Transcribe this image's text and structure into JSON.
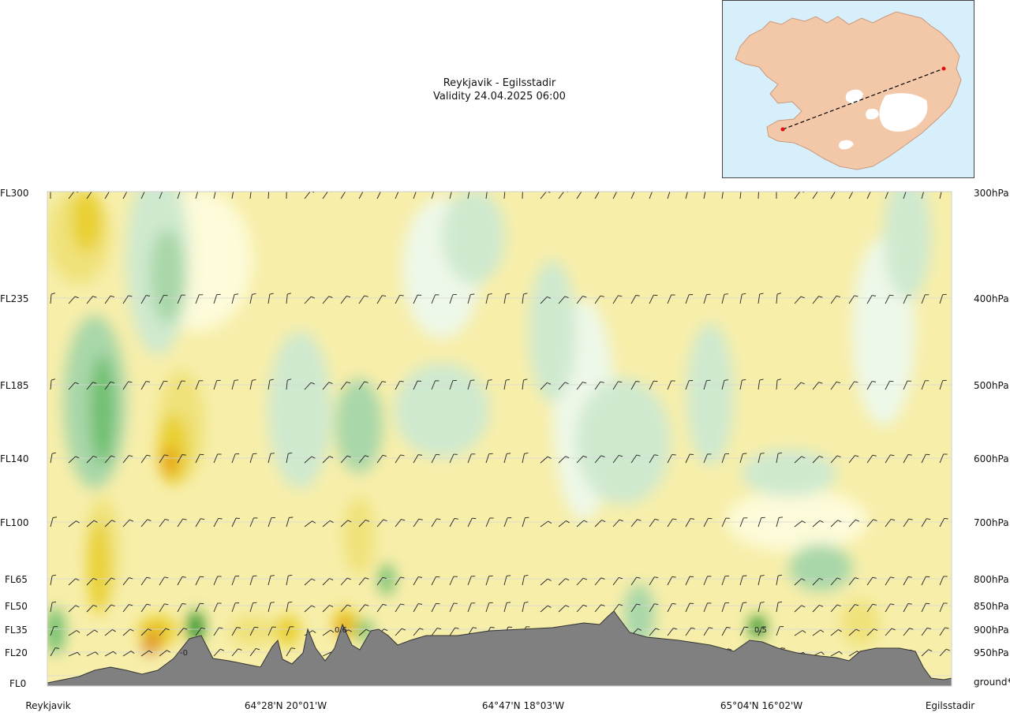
{
  "title": {
    "route": "Reykjavik - Egilsstadir",
    "validity": "Validity 24.04.2025 06:00"
  },
  "chart_data": {
    "type": "heatmap",
    "title": "Reykjavik - Egilsstadir",
    "subtitle": "Validity 24.04.2025 06:00",
    "y_left_ticks": [
      "FL300",
      "FL235",
      "FL185",
      "FL140",
      "FL100",
      "FL65",
      "FL50",
      "FL35",
      "FL20",
      "FL0"
    ],
    "y_right_ticks": [
      "300hPa",
      "400hPa",
      "500hPa",
      "600hPa",
      "700hPa",
      "800hPa",
      "850hPa",
      "900hPa",
      "950hPa",
      "ground*"
    ],
    "x_ticks": [
      "Reykjavik",
      "64°28'N 20°01'W",
      "64°47'N 18°03'W",
      "65°04'N 16°02'W",
      "Egilsstadir"
    ],
    "annotations": [
      {
        "text": "0.6",
        "near": "64°28'N 20°01'W",
        "level": "FL35"
      },
      {
        "text": "0.5",
        "near": "65°04'N 16°02'W",
        "level": "FL35"
      },
      {
        "text": "-0",
        "near": "Reykjavik",
        "level": "FL20"
      }
    ],
    "colors": {
      "neg_strong": "#1f8a1f",
      "neg_mid": "#6fbf6f",
      "neg_light": "#a9d7a9",
      "neg_faint": "#cfe9cf",
      "neutral_green": "#eef8e8",
      "neutral_yellow": "#fdfbd9",
      "pos_faint": "#f7eeaa",
      "pos_light": "#efe27a",
      "pos_mid": "#e9d032",
      "pos_strong": "#e6a118",
      "pos_max": "#d2772a",
      "terrain": "#808080"
    }
  },
  "map": {
    "description_points": [
      "Reykjavik",
      "Egilsstadir"
    ],
    "colors": {
      "sea": "#d7eefb",
      "land": "#f2c8a8",
      "ice": "#ffffff",
      "route": "#000000",
      "point": "#e01010"
    }
  }
}
